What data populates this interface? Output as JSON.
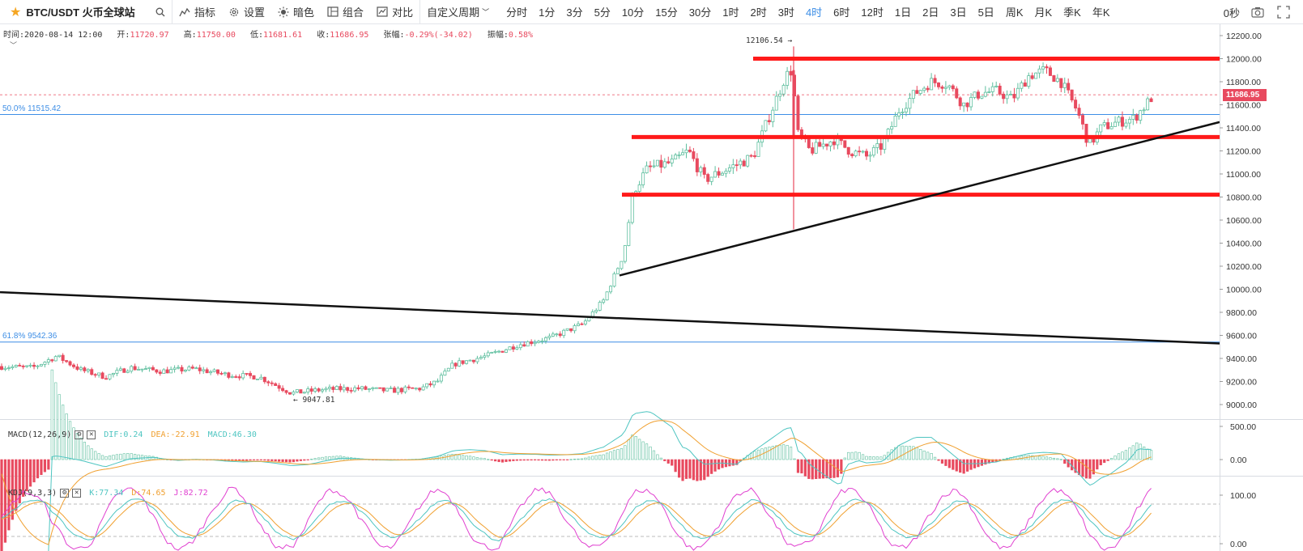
{
  "toolbar": {
    "symbol": "BTC/USDT 火币全球站",
    "indicators_label": "指标",
    "settings_label": "设置",
    "theme_label": "暗色",
    "compose_label": "组合",
    "compare_label": "对比",
    "custom_period_label": "自定义周期",
    "periods": [
      "分时",
      "1分",
      "3分",
      "5分",
      "10分",
      "15分",
      "30分",
      "1时",
      "2时",
      "3时",
      "4时",
      "6时",
      "12时",
      "1日",
      "2日",
      "3日",
      "5日",
      "周K",
      "月K",
      "季K",
      "年K"
    ],
    "active_period": "4时",
    "countdown": "0秒"
  },
  "ohlc": {
    "time_label": "时间:",
    "time": "2020-08-14 12:00",
    "open_label": "开:",
    "open": "11720.97",
    "high_label": "高:",
    "high": "11750.00",
    "low_label": "低:",
    "low": "11681.61",
    "close_label": "收:",
    "close": "11686.95",
    "change_label": "张幅:",
    "change": "-0.29%(-34.02)",
    "amplitude_label": "振幅:",
    "amplitude": "0.58%"
  },
  "price_axis": [
    "12200.00",
    "12000.00",
    "11800.00",
    "11600.00",
    "11400.00",
    "11200.00",
    "11000.00",
    "10800.00",
    "10600.00",
    "10400.00",
    "10200.00",
    "10000.00",
    "9800.00",
    "9600.00",
    "9400.00",
    "9200.00",
    "9000.00"
  ],
  "current_price": "11686.95",
  "fib_levels": [
    {
      "label": "50.0% 11515.42",
      "price": 11515.42
    },
    {
      "label": "61.8% 9542.36",
      "price": 9542.36
    }
  ],
  "markers": {
    "high": "12106.54 →",
    "low": "← 9047.81"
  },
  "macd": {
    "title": "MACD(12,26,9)",
    "dif": "DIF:0.24",
    "dea": "DEA:-22.91",
    "macd": "MACD:46.30",
    "axis": [
      "500.00",
      "0.00"
    ]
  },
  "kdj": {
    "title": "KDJ(9,3,3)",
    "k": "K:77.34",
    "d": "D:74.65",
    "j": "J:82.72",
    "axis": [
      "100.00",
      "0.00"
    ]
  },
  "colors": {
    "up": "#5fbf9f",
    "down": "#e84a5f",
    "accent": "#3d8ee6",
    "drawing_red": "#ff1a1a",
    "drawing_black": "#111111",
    "dif": "#4ec5c1",
    "dea": "#f0a030",
    "k": "#4ec5c1",
    "d": "#f0a030",
    "j": "#e040d0"
  },
  "icons": {
    "star": "star-icon",
    "search": "search-icon",
    "indicators": "indicators-icon",
    "settings": "gear-icon",
    "theme": "sun-icon",
    "compose": "layers-icon",
    "compare": "compare-icon",
    "camera": "camera-icon",
    "fullscreen": "fullscreen-icon"
  }
}
